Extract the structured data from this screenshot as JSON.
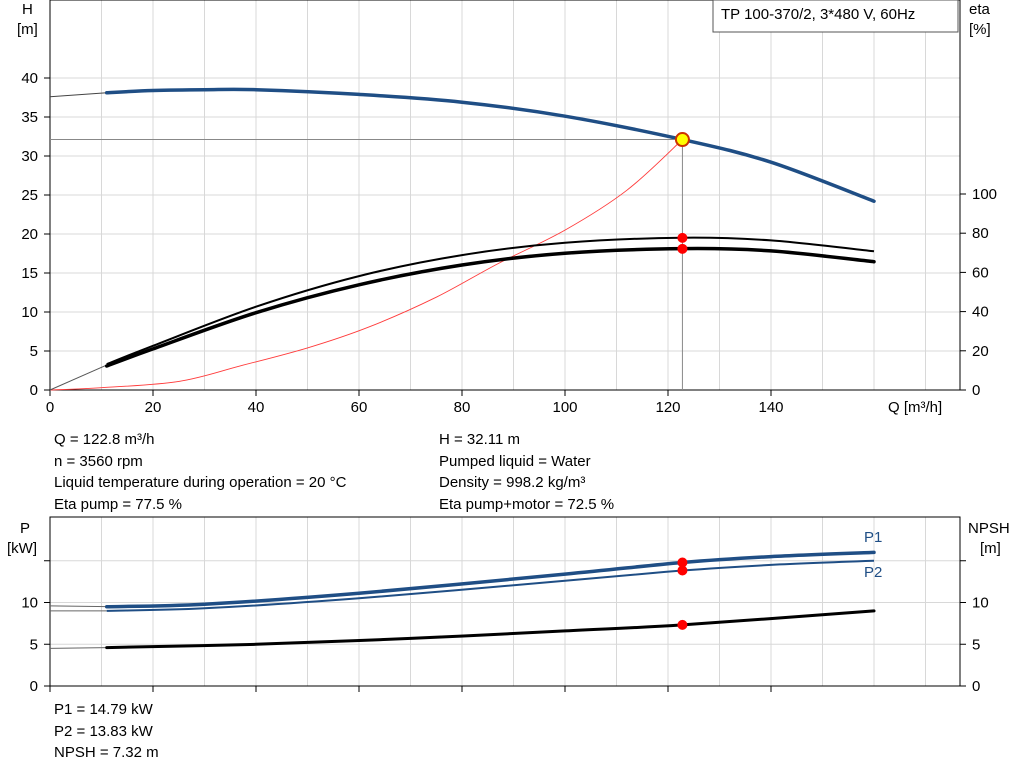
{
  "title_box": "TP 100-370/2, 3*480 V, 60Hz",
  "upper_axes": {
    "left_label": [
      "H",
      "[m]"
    ],
    "right_label": [
      "eta",
      "[%]"
    ],
    "x_label": "Q [m³/h]"
  },
  "lower_axes": {
    "left_label": [
      "P",
      "[kW]"
    ],
    "right_label": [
      "NPSH",
      "[m]"
    ]
  },
  "info_upper_left": [
    "Q = 122.8 m³/h",
    "n = 3560 rpm",
    "Liquid temperature during operation = 20 °C",
    "Eta pump = 77.5 %"
  ],
  "info_upper_right": [
    "H = 32.11 m",
    "Pumped liquid = Water",
    "Density = 998.2 kg/m³",
    "Eta pump+motor = 72.5 %"
  ],
  "info_lower": [
    "P1 = 14.79 kW",
    "P2 = 13.83 kW",
    "NPSH = 7.32 m"
  ],
  "colors": {
    "head": "#1f4e85",
    "eta": "#000000",
    "system": "#ff3b3b",
    "marker": "#ff0000",
    "duty_fill": "#ffff00",
    "grid": "#d8d8d8"
  },
  "chart_data": [
    {
      "type": "line",
      "x_range": [
        0,
        175
      ],
      "y_left_range": [
        0,
        45
      ],
      "y_right_range": [
        0,
        105
      ],
      "x_ticks": [
        0,
        20,
        40,
        60,
        80,
        100,
        120,
        140
      ],
      "y_left_ticks": [
        0,
        5,
        10,
        15,
        20,
        25,
        30,
        35,
        40
      ],
      "y_right_ticks": [
        0,
        20,
        40,
        60,
        80,
        100
      ],
      "grid": true,
      "series": [
        {
          "role": "head_ext",
          "axis": "left",
          "x": [
            0,
            11
          ],
          "y": [
            37.6,
            38.1
          ]
        },
        {
          "role": "head",
          "axis": "left",
          "x": [
            11,
            20,
            30,
            40,
            60,
            80,
            100,
            122.8,
            140,
            160
          ],
          "y": [
            38.1,
            38.4,
            38.5,
            38.5,
            37.9,
            36.9,
            35.1,
            32.11,
            29.2,
            24.2
          ]
        },
        {
          "role": "eta_pump",
          "axis": "right",
          "x": [
            11,
            20,
            40,
            60,
            80,
            100,
            122.8,
            140,
            160
          ],
          "y": [
            7.6,
            13.0,
            25.5,
            35.0,
            41.8,
            45.6,
            77.5,
            76.5,
            71.0
          ]
        },
        {
          "role": "eta_total",
          "axis": "right",
          "x": [
            11,
            20,
            40,
            60,
            80,
            100,
            122.8,
            140,
            160
          ],
          "y": [
            7.2,
            12.4,
            24.0,
            33.0,
            39.4,
            43.4,
            72.5,
            71.6,
            66.1
          ]
        },
        {
          "role": "system",
          "axis": "left",
          "x": [
            0,
            10,
            25,
            37,
            50,
            62,
            75,
            87,
            100,
            112,
            122.8
          ],
          "y": [
            0,
            0.3,
            1.1,
            3.1,
            5.4,
            8.1,
            11.9,
            16.2,
            20.5,
            25.6,
            32.11
          ]
        }
      ],
      "duty_point": {
        "x": 122.8,
        "head": 32.11,
        "eta_pump": 77.5,
        "eta_total": 72.5
      }
    },
    {
      "type": "line",
      "x_range": [
        0,
        175
      ],
      "y_left_range": [
        0,
        20
      ],
      "y_right_range": [
        0,
        20
      ],
      "x_ticks": [
        0,
        20,
        40,
        60,
        80,
        100,
        120,
        140
      ],
      "y_left_ticks": [
        0,
        5,
        10
      ],
      "y_right_ticks": [
        0,
        5,
        10
      ],
      "grid": true,
      "series": [
        {
          "name": "P1",
          "axis": "left",
          "x": [
            11,
            30,
            60,
            100,
            122.8,
            140,
            160
          ],
          "y": [
            9.5,
            9.8,
            11.1,
            13.4,
            14.79,
            15.5,
            16.0
          ]
        },
        {
          "name": "P2",
          "axis": "left",
          "x": [
            11,
            30,
            60,
            100,
            122.8,
            140,
            160
          ],
          "y": [
            9.0,
            9.3,
            10.5,
            12.6,
            13.83,
            14.5,
            15.0
          ]
        },
        {
          "role": "npsh",
          "axis": "right",
          "x": [
            11,
            40,
            70,
            100,
            122.8,
            160
          ],
          "y": [
            4.6,
            5.0,
            5.7,
            6.6,
            7.32,
            9.0
          ]
        }
      ],
      "duty_point": {
        "x": 122.8,
        "P1": 14.79,
        "P2": 13.83,
        "NPSH": 7.32
      }
    }
  ]
}
